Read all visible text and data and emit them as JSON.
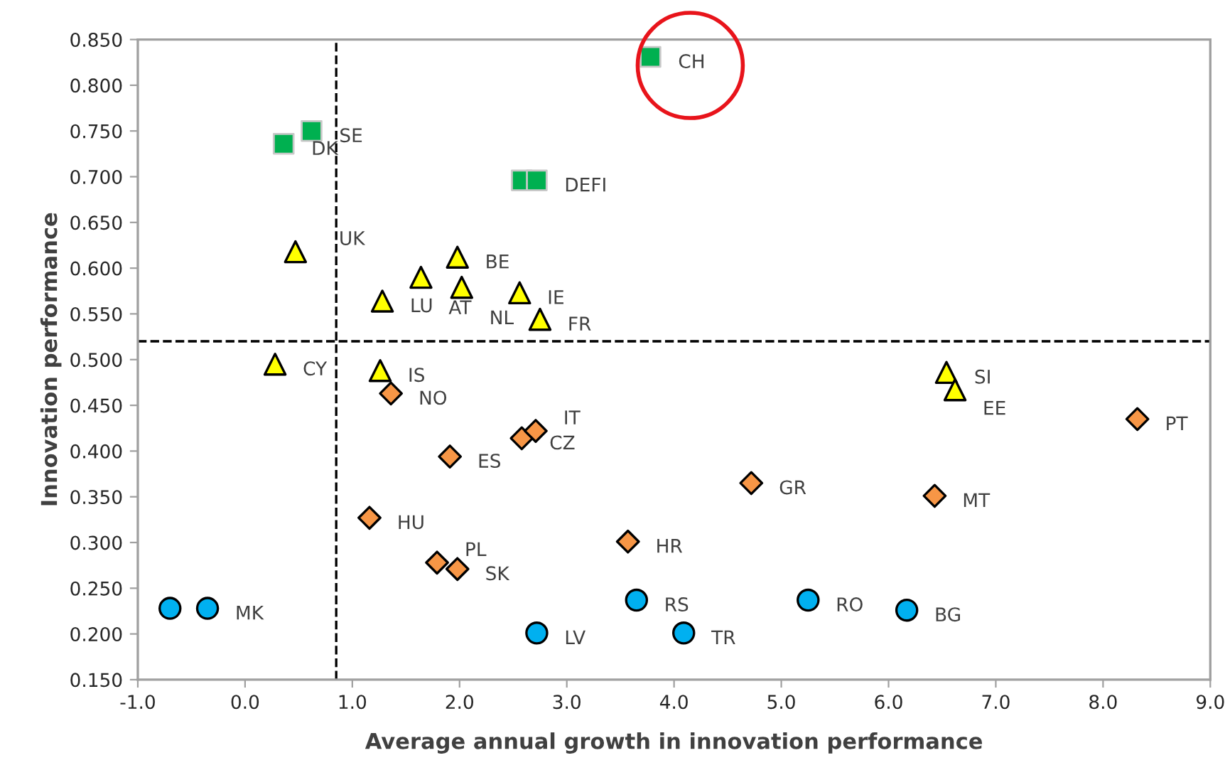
{
  "chart_data": {
    "type": "scatter",
    "xlabel": "Average annual growth in innovation performance",
    "ylabel": "Innovation performance",
    "xlim": [
      -1,
      9
    ],
    "ylim": [
      0.15,
      0.85
    ],
    "xticks": [
      {
        "value": -1,
        "label": "-1.0"
      },
      {
        "value": 0,
        "label": "0.0"
      },
      {
        "value": 1,
        "label": "1.0"
      },
      {
        "value": 2,
        "label": "2.0"
      },
      {
        "value": 3,
        "label": "3.0"
      },
      {
        "value": 4,
        "label": "4.0"
      },
      {
        "value": 5,
        "label": "5.0"
      },
      {
        "value": 6,
        "label": "6.0"
      },
      {
        "value": 7,
        "label": "7.0"
      },
      {
        "value": 8,
        "label": "8.0"
      },
      {
        "value": 9,
        "label": "9.0"
      }
    ],
    "yticks": [
      {
        "value": 0.15,
        "label": "0.150"
      },
      {
        "value": 0.2,
        "label": "0.200"
      },
      {
        "value": 0.25,
        "label": "0.250"
      },
      {
        "value": 0.3,
        "label": "0.300"
      },
      {
        "value": 0.35,
        "label": "0.350"
      },
      {
        "value": 0.4,
        "label": "0.400"
      },
      {
        "value": 0.45,
        "label": "0.450"
      },
      {
        "value": 0.5,
        "label": "0.500"
      },
      {
        "value": 0.55,
        "label": "0.550"
      },
      {
        "value": 0.6,
        "label": "0.600"
      },
      {
        "value": 0.65,
        "label": "0.650"
      },
      {
        "value": 0.7,
        "label": "0.700"
      },
      {
        "value": 0.75,
        "label": "0.750"
      },
      {
        "value": 0.8,
        "label": "0.800"
      },
      {
        "value": 0.85,
        "label": "0.850"
      }
    ],
    "grid": false,
    "series": [
      {
        "color": "#00b050",
        "marker": "square",
        "x": [
          0.36,
          0.62,
          2.58,
          2.72,
          3.78
        ],
        "values": [
          0.736,
          0.75,
          0.696,
          0.696,
          0.831
        ]
      },
      {
        "color": "#ffff00",
        "marker": "triangle",
        "x": [
          0.47,
          1.28,
          1.64,
          1.98,
          2.02,
          2.56,
          2.75,
          0.28,
          1.26,
          6.54,
          6.62
        ],
        "values": [
          0.618,
          0.564,
          0.59,
          0.612,
          0.579,
          0.573,
          0.544,
          0.495,
          0.488,
          0.486,
          0.467
        ]
      },
      {
        "color": "#f79646",
        "marker": "diamond",
        "x": [
          1.36,
          1.91,
          2.58,
          2.71,
          1.16,
          1.79,
          1.98,
          3.57,
          4.72,
          6.43,
          8.32
        ],
        "values": [
          0.463,
          0.394,
          0.414,
          0.422,
          0.327,
          0.278,
          0.271,
          0.301,
          0.365,
          0.351,
          0.435
        ]
      },
      {
        "color": "#00b0f0",
        "marker": "circle",
        "x": [
          -0.7,
          -0.35,
          2.72,
          3.65,
          4.09,
          5.25,
          6.17
        ],
        "values": [
          0.228,
          0.228,
          0.201,
          0.237,
          0.201,
          0.237,
          0.226
        ]
      }
    ],
    "ref_lines": [
      {
        "axis": "x",
        "value": 0.85,
        "line_style": "dashed",
        "color": "#000000"
      },
      {
        "axis": "y",
        "value": 0.52,
        "line_style": "dashed",
        "color": "#000000"
      }
    ],
    "annotations": [
      {
        "text": "DK",
        "x": 0.36,
        "y": 0.736
      },
      {
        "text": "SE",
        "x": 0.62,
        "y": 0.75
      },
      {
        "text": "DEFI",
        "x": 2.72,
        "y": 0.696
      },
      {
        "text": "CH",
        "x": 3.78,
        "y": 0.831
      },
      {
        "text": "UK",
        "x": 0.47,
        "y": 0.618
      },
      {
        "text": "LU",
        "x": 1.28,
        "y": 0.564
      },
      {
        "text": "AT",
        "x": 1.64,
        "y": 0.59
      },
      {
        "text": "BE",
        "x": 1.98,
        "y": 0.612
      },
      {
        "text": "NL",
        "x": 2.02,
        "y": 0.579
      },
      {
        "text": "IE",
        "x": 2.56,
        "y": 0.573
      },
      {
        "text": "FR",
        "x": 2.75,
        "y": 0.544
      },
      {
        "text": "CY",
        "x": 0.28,
        "y": 0.495
      },
      {
        "text": "IS",
        "x": 1.26,
        "y": 0.488
      },
      {
        "text": "SI",
        "x": 6.54,
        "y": 0.486
      },
      {
        "text": "EE",
        "x": 6.62,
        "y": 0.467
      },
      {
        "text": "NO",
        "x": 1.36,
        "y": 0.463
      },
      {
        "text": "ES",
        "x": 1.91,
        "y": 0.394
      },
      {
        "text": "CZ",
        "x": 2.58,
        "y": 0.414
      },
      {
        "text": "IT",
        "x": 2.71,
        "y": 0.422
      },
      {
        "text": "HU",
        "x": 1.16,
        "y": 0.327
      },
      {
        "text": "PL",
        "x": 1.79,
        "y": 0.278
      },
      {
        "text": "SK",
        "x": 1.98,
        "y": 0.271
      },
      {
        "text": "HR",
        "x": 3.57,
        "y": 0.301
      },
      {
        "text": "GR",
        "x": 4.72,
        "y": 0.365
      },
      {
        "text": "MT",
        "x": 6.43,
        "y": 0.351
      },
      {
        "text": "PT",
        "x": 8.32,
        "y": 0.435
      },
      {
        "text": "MK",
        "x": -0.35,
        "y": 0.228
      },
      {
        "text": "LV",
        "x": 2.72,
        "y": 0.201
      },
      {
        "text": "RS",
        "x": 3.65,
        "y": 0.237
      },
      {
        "text": "TR",
        "x": 4.09,
        "y": 0.201
      },
      {
        "text": "RO",
        "x": 5.25,
        "y": 0.237
      },
      {
        "text": "BG",
        "x": 6.17,
        "y": 0.226
      }
    ]
  }
}
